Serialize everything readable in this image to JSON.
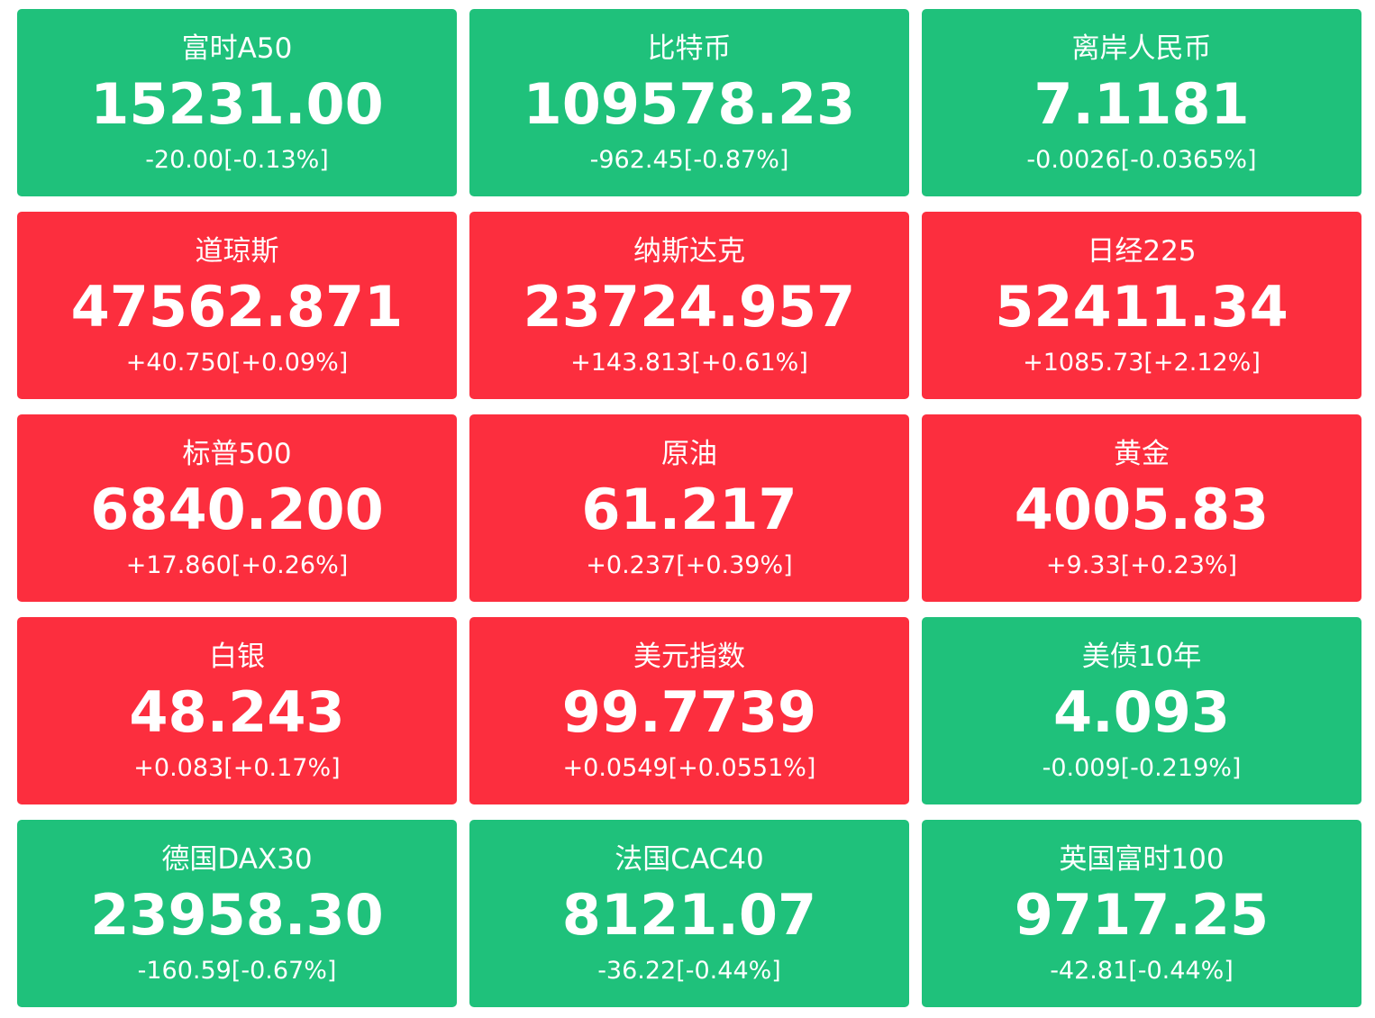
{
  "tiles": [
    {
      "name": "富时A50",
      "price": "15231.00",
      "change": "-20.00[-0.13%]",
      "color": "#1fc17b"
    },
    {
      "name": "比特币",
      "price": "109578.23",
      "change": "-962.45[-0.87%]",
      "color": "#1fc17b"
    },
    {
      "name": "离岸人民币",
      "price": "7.1181",
      "change": "-0.0026[-0.0365%]",
      "color": "#1fc17b"
    },
    {
      "name": "道琼斯",
      "price": "47562.871",
      "change": "+40.750[+0.09%]",
      "color": "#fc2e3e"
    },
    {
      "name": "纳斯达克",
      "price": "23724.957",
      "change": "+143.813[+0.61%]",
      "color": "#fc2e3e"
    },
    {
      "name": "日经225",
      "price": "52411.34",
      "change": "+1085.73[+2.12%]",
      "color": "#fc2e3e"
    },
    {
      "name": "标普500",
      "price": "6840.200",
      "change": "+17.860[+0.26%]",
      "color": "#fc2e3e"
    },
    {
      "name": "原油",
      "price": "61.217",
      "change": "+0.237[+0.39%]",
      "color": "#fc2e3e"
    },
    {
      "name": "黄金",
      "price": "4005.83",
      "change": "+9.33[+0.23%]",
      "color": "#fc2e3e"
    },
    {
      "name": "白银",
      "price": "48.243",
      "change": "+0.083[+0.17%]",
      "color": "#fc2e3e"
    },
    {
      "name": "美元指数",
      "price": "99.7739",
      "change": "+0.0549[+0.0551%]",
      "color": "#fc2e3e"
    },
    {
      "name": "美债10年",
      "price": "4.093",
      "change": "-0.009[-0.219%]",
      "color": "#1fc17b"
    },
    {
      "name": "德国DAX30",
      "price": "23958.30",
      "change": "-160.59[-0.67%]",
      "color": "#1fc17b"
    },
    {
      "name": "法国CAC40",
      "price": "8121.07",
      "change": "-36.22[-0.44%]",
      "color": "#1fc17b"
    },
    {
      "name": "英国富时100",
      "price": "9717.25",
      "change": "-42.81[-0.44%]",
      "color": "#1fc17b"
    }
  ]
}
